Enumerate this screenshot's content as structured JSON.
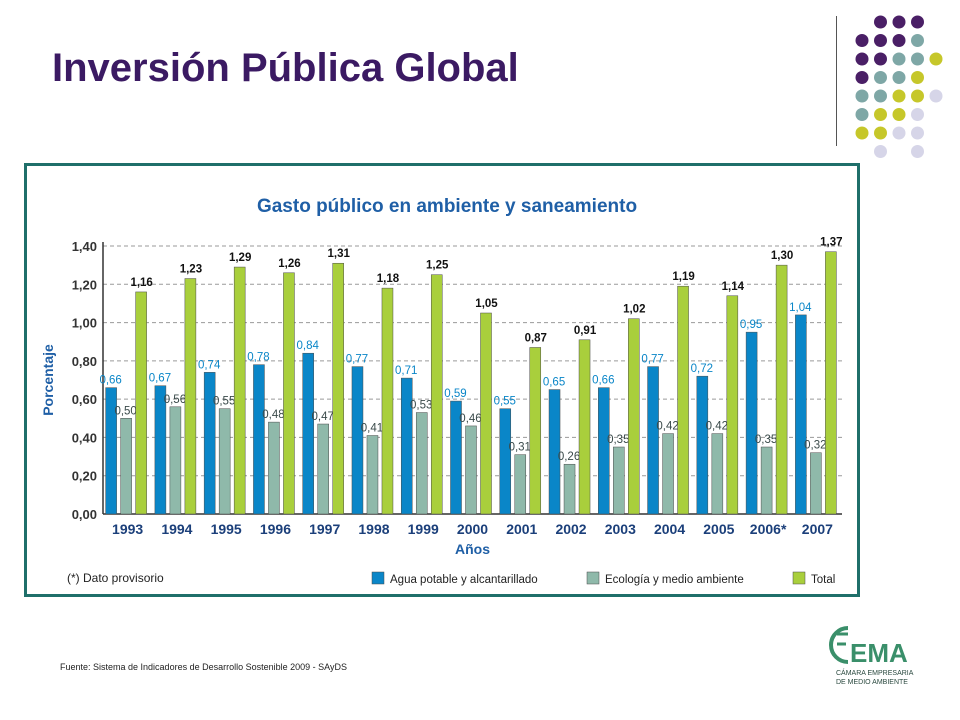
{
  "slide": {
    "title": "Inversión Pública Global",
    "source": "Fuente: Sistema de Indicadores de Desarrollo Sostenible 2009 - SAyDS"
  },
  "logo": {
    "letters": "EMA",
    "line1": "CÁMARA EMPRESARIA",
    "line2": "DE MEDIO AMBIENTE"
  },
  "colors": {
    "title": "#3b1a63",
    "agua": "#0a86c8",
    "ecologia": "#8fb9aa",
    "total": "#a9cf3c",
    "chart_title": "#1f5fa6",
    "frame": "#1f6f6a",
    "dot_purple": "#4a1f66",
    "dot_teal": "#7ea7a6",
    "dot_olive": "#c6c72a",
    "dot_lilac": "#d6d5e8"
  },
  "chart_data": {
    "type": "bar",
    "title": "Gasto público en ambiente y saneamiento",
    "xlabel": "Años",
    "ylabel": "Porcentaje",
    "ylim": [
      0,
      1.4
    ],
    "yticks": [
      "0,00",
      "0,20",
      "0,40",
      "0,60",
      "0,80",
      "1,00",
      "1,20",
      "1,40"
    ],
    "grid": true,
    "legend_position": "bottom-right",
    "note": "(*) Dato provisorio",
    "categories": [
      "1993",
      "1994",
      "1995",
      "1996",
      "1997",
      "1998",
      "1999",
      "2000",
      "2001",
      "2002",
      "2003",
      "2004",
      "2005",
      "2006*",
      "2007"
    ],
    "series": [
      {
        "name": "Agua potable y alcantarillado",
        "values": [
          0.66,
          0.67,
          0.74,
          0.78,
          0.84,
          0.77,
          0.71,
          0.59,
          0.55,
          0.65,
          0.66,
          0.77,
          0.72,
          0.95,
          1.04
        ],
        "labels": [
          "0,66",
          "0,67",
          "0,74",
          "0,78",
          "0,84",
          "0,77",
          "0,71",
          "0,59",
          "0,55",
          "0,65",
          "0,66",
          "0,77",
          "0,72",
          "0,95",
          "1,04"
        ]
      },
      {
        "name": "Ecología y medio ambiente",
        "values": [
          0.5,
          0.56,
          0.55,
          0.48,
          0.47,
          0.41,
          0.53,
          0.46,
          0.31,
          0.26,
          0.35,
          0.42,
          0.42,
          0.35,
          0.32
        ],
        "labels": [
          "0,50",
          "0,56",
          "0,55",
          "0,48",
          "0,47",
          "0,41",
          "0,53",
          "0,46",
          "0,31",
          "0,26",
          "0,35",
          "0,42",
          "0,42",
          "0,35",
          "0,32"
        ]
      },
      {
        "name": "Total",
        "values": [
          1.16,
          1.23,
          1.29,
          1.26,
          1.31,
          1.18,
          1.25,
          1.05,
          0.87,
          0.91,
          1.02,
          1.19,
          1.14,
          1.3,
          1.37
        ],
        "labels": [
          "1,16",
          "1,23",
          "1,29",
          "1,26",
          "1,31",
          "1,18",
          "1,25",
          "1,05",
          "0,87",
          "0,91",
          "1,02",
          "1,19",
          "1,14",
          "1,30",
          "1,37"
        ]
      }
    ]
  }
}
